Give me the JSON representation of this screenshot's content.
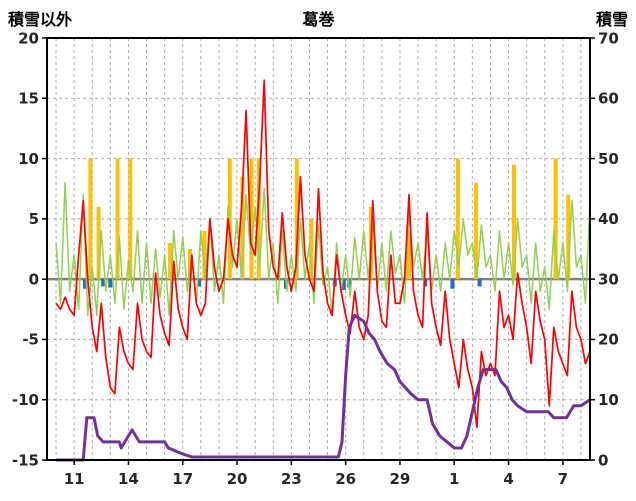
{
  "chart_data": {
    "type": "line",
    "title": "葛巻",
    "left_axis": {
      "label": "積雪以外",
      "min": -15,
      "max": 20,
      "ticks": [
        20,
        15,
        10,
        5,
        0,
        -5,
        -10,
        -15
      ]
    },
    "right_axis": {
      "label": "積雪",
      "min": 0,
      "max": 70,
      "ticks": [
        70,
        60,
        50,
        40,
        30,
        20,
        10,
        0
      ]
    },
    "x_axis": {
      "min": 9.5,
      "max": 39.5,
      "grid_step": 1,
      "labels": [
        {
          "pos": 11,
          "text": "11"
        },
        {
          "pos": 14,
          "text": "14"
        },
        {
          "pos": 17,
          "text": "17"
        },
        {
          "pos": 20,
          "text": "20"
        },
        {
          "pos": 23,
          "text": "23"
        },
        {
          "pos": 26,
          "text": "26"
        },
        {
          "pos": 29,
          "text": "29"
        },
        {
          "pos": 32,
          "text": "1"
        },
        {
          "pos": 35,
          "text": "4"
        },
        {
          "pos": 38,
          "text": "7"
        }
      ]
    },
    "colors": {
      "red_line": "#FF0000",
      "green_line": "#92D050",
      "orange_bars": "#FFC000",
      "blue_bars": "#1F6FC5",
      "purple_line": "#7030A0",
      "zero_line": "#808080",
      "grid": "#ADADAD",
      "frame": "#000000",
      "axis_text": "#262626"
    },
    "series": {
      "red_line": {
        "axis": "left",
        "x_start": 10,
        "x_step": 0.25,
        "values": [
          -2,
          -2.5,
          -1.5,
          -2.5,
          -3,
          2,
          6.5,
          0,
          -4,
          -6,
          -2,
          -6.5,
          -9,
          -9.5,
          -4,
          -6,
          -7,
          -7.5,
          -2,
          -5,
          -6,
          -6.5,
          0.5,
          -3,
          -4.5,
          -5.5,
          1.5,
          -2.5,
          -4,
          -5,
          2,
          -2,
          -3,
          -2,
          5,
          1,
          -1,
          0,
          5,
          2,
          1,
          6,
          14,
          3,
          2,
          8,
          16.5,
          4,
          1,
          0,
          5.5,
          1,
          -1,
          1,
          8.5,
          2,
          0,
          -1,
          7.5,
          0.5,
          -2,
          -3,
          2,
          -1,
          -3,
          -4.5,
          -1,
          -4,
          -5,
          -3,
          6.5,
          -1,
          -3.5,
          -4,
          2,
          -2,
          -2,
          0,
          7,
          -1,
          -3,
          -4,
          5.5,
          -2,
          -4,
          -5.5,
          -1,
          -5,
          -7,
          -9,
          -5,
          -7.5,
          -9,
          -12.3,
          -6,
          -8,
          -7,
          -8,
          -1,
          -4,
          -3,
          -5,
          0.5,
          -2,
          -4,
          -7,
          -1,
          -3.5,
          -5,
          -10.5,
          -4,
          -6,
          -7,
          -8,
          -1,
          -4,
          -5,
          -7,
          -6
        ]
      },
      "green_line": {
        "axis": "left",
        "x_start": 10,
        "x_step": 0.25,
        "values": [
          3,
          -2,
          8,
          -1,
          2,
          -2.5,
          7,
          -3,
          1,
          -3,
          4,
          -1,
          2,
          -2,
          3.5,
          -2.5,
          1.5,
          -1,
          4,
          -2,
          3,
          -2,
          2.5,
          -1.5,
          2,
          -3,
          4,
          0,
          3.5,
          -1,
          2,
          -2,
          4,
          0,
          5,
          -1,
          2,
          -2,
          6,
          1,
          5,
          0,
          7,
          2,
          6,
          1,
          7.5,
          0,
          3,
          -2,
          4,
          -1,
          2,
          -1,
          5,
          0,
          3,
          -2,
          4.5,
          -0.5,
          1,
          -3,
          3,
          -1,
          2,
          -1.5,
          3.5,
          0,
          4,
          0,
          5,
          -1,
          3,
          -1,
          4,
          0.5,
          2,
          -2,
          5.5,
          1,
          3,
          0,
          4,
          -1,
          2,
          -1,
          3,
          0,
          4,
          1,
          5,
          2,
          3,
          0,
          4.5,
          1,
          2,
          -1,
          4,
          0,
          3,
          -0.5,
          5,
          1,
          2,
          -2,
          3,
          -1,
          1,
          -2.5,
          4,
          0,
          3,
          -1,
          6.5,
          1,
          2,
          -2,
          6.5
        ]
      },
      "orange_bars": {
        "axis": "left",
        "points": [
          [
            11.9,
            10
          ],
          [
            12.35,
            6
          ],
          [
            13.4,
            10
          ],
          [
            14.1,
            10
          ],
          [
            16.3,
            3
          ],
          [
            17.4,
            2.5
          ],
          [
            18.2,
            4
          ],
          [
            19.6,
            10
          ],
          [
            20.3,
            8.5
          ],
          [
            20.8,
            10
          ],
          [
            21.2,
            10
          ],
          [
            23.3,
            10
          ],
          [
            24.1,
            5
          ],
          [
            27.4,
            6
          ],
          [
            29.5,
            4
          ],
          [
            32.2,
            10
          ],
          [
            33.2,
            8
          ],
          [
            35.3,
            9.5
          ],
          [
            37.6,
            10
          ],
          [
            38.3,
            7
          ]
        ]
      },
      "blue_bars": {
        "axis": "left",
        "points": [
          [
            11.6,
            -0.8
          ],
          [
            12.6,
            -0.6
          ],
          [
            13.0,
            -0.7
          ],
          [
            17.9,
            -0.6
          ],
          [
            22.7,
            -0.8
          ],
          [
            25.4,
            -0.6
          ],
          [
            25.9,
            -0.9
          ],
          [
            26.2,
            -0.7
          ],
          [
            30.4,
            -0.6
          ],
          [
            31.9,
            -0.8
          ],
          [
            33.4,
            -0.6
          ]
        ]
      },
      "purple_line": {
        "axis": "right",
        "points": [
          [
            10,
            0
          ],
          [
            11.5,
            0
          ],
          [
            11.7,
            7
          ],
          [
            12.1,
            7
          ],
          [
            12.3,
            4
          ],
          [
            12.6,
            3
          ],
          [
            13.5,
            3
          ],
          [
            13.6,
            2
          ],
          [
            14.2,
            5
          ],
          [
            14.6,
            3
          ],
          [
            16.0,
            3
          ],
          [
            16.2,
            2
          ],
          [
            17.0,
            1
          ],
          [
            17.5,
            0.5
          ],
          [
            25.6,
            0.5
          ],
          [
            25.8,
            3
          ],
          [
            26.0,
            14
          ],
          [
            26.2,
            22
          ],
          [
            26.5,
            24
          ],
          [
            27.0,
            23
          ],
          [
            27.3,
            21
          ],
          [
            27.6,
            20
          ],
          [
            27.9,
            18
          ],
          [
            28.3,
            16
          ],
          [
            28.7,
            15
          ],
          [
            29.0,
            13
          ],
          [
            29.3,
            12
          ],
          [
            29.6,
            11
          ],
          [
            30.0,
            10
          ],
          [
            30.5,
            10
          ],
          [
            30.8,
            6
          ],
          [
            31.2,
            4
          ],
          [
            31.6,
            3
          ],
          [
            32.0,
            2
          ],
          [
            32.4,
            2
          ],
          [
            32.7,
            4
          ],
          [
            33.0,
            8
          ],
          [
            33.3,
            12
          ],
          [
            33.6,
            15
          ],
          [
            34.3,
            15
          ],
          [
            34.6,
            13
          ],
          [
            34.9,
            12
          ],
          [
            35.2,
            10
          ],
          [
            35.5,
            9
          ],
          [
            36.0,
            8
          ],
          [
            37.2,
            8
          ],
          [
            37.5,
            7
          ],
          [
            38.2,
            7
          ],
          [
            38.6,
            9
          ],
          [
            39.0,
            9
          ],
          [
            39.5,
            10
          ]
        ]
      }
    }
  }
}
